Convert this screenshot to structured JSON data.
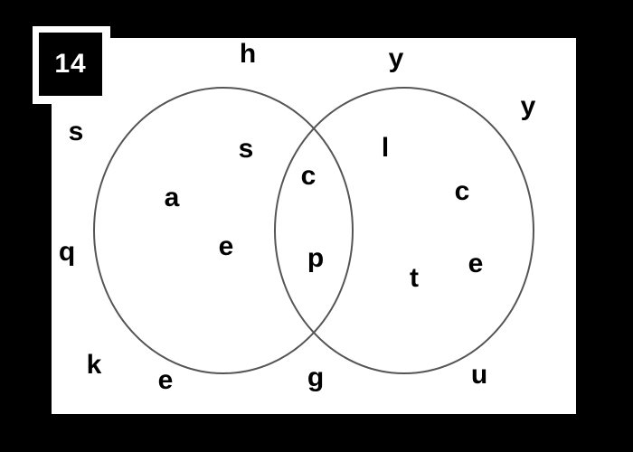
{
  "badge": {
    "number": "14"
  },
  "colors": {
    "background": "#000000",
    "panel": "#ffffff",
    "circle_stroke": "#555555",
    "text": "#000000"
  },
  "left_only": [
    "s",
    "a",
    "e"
  ],
  "intersection": [
    "c",
    "p"
  ],
  "right_only": [
    "l",
    "c",
    "t",
    "e"
  ],
  "outside": [
    "h",
    "y",
    "y",
    "s",
    "q",
    "k",
    "e",
    "g",
    "u"
  ]
}
